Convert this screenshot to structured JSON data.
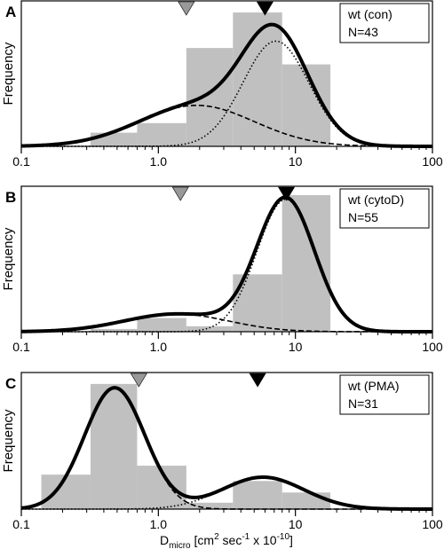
{
  "chart_data": {
    "type": "histogram",
    "x_scale": "log",
    "xlim": [
      0.1,
      100
    ],
    "x_ticks": [
      "0.1",
      "1.0",
      "10",
      "100"
    ],
    "xlabel": {
      "main": "D",
      "sub": "micro",
      "pre_sup": "[cm",
      "sup1": "2",
      "mid": " sec",
      "sup2": "-1",
      "post": " x 10",
      "sup3": "-10",
      "end": "]"
    },
    "ylabel": "Frequency",
    "grid": false,
    "legend_placement": "top-right",
    "colors": {
      "bars": "#c0c0c0",
      "curves": "#000000",
      "marker_gray": "#999999",
      "marker_black": "#000000"
    },
    "panels": [
      {
        "label": "A",
        "legend_lines": [
          "wt (con)",
          "N=43"
        ],
        "ymax": 1.0,
        "bins": [
          {
            "x0": 0.32,
            "x1": 0.7,
            "value": 0.1
          },
          {
            "x0": 0.7,
            "x1": 1.6,
            "value": 0.17
          },
          {
            "x0": 1.6,
            "x1": 3.5,
            "value": 0.72
          },
          {
            "x0": 3.5,
            "x1": 8.0,
            "value": 0.98
          },
          {
            "x0": 8.0,
            "x1": 18.0,
            "value": 0.6
          }
        ],
        "components": [
          {
            "style": "dashed",
            "amplitude": 0.3,
            "center": 1.9,
            "sigma_decades": 0.42
          },
          {
            "style": "dotted",
            "amplitude": 0.77,
            "center": 7.2,
            "sigma_decades": 0.24
          }
        ],
        "markers": [
          {
            "x": 1.6,
            "color": "gray"
          },
          {
            "x": 6.0,
            "color": "black"
          }
        ]
      },
      {
        "label": "B",
        "legend_lines": [
          "wt (cytoD)",
          "N=55"
        ],
        "ymax": 1.0,
        "bins": [
          {
            "x0": 0.32,
            "x1": 0.7,
            "value": 0.02
          },
          {
            "x0": 0.7,
            "x1": 1.6,
            "value": 0.1
          },
          {
            "x0": 1.6,
            "x1": 3.5,
            "value": 0.04
          },
          {
            "x0": 3.5,
            "x1": 8.0,
            "value": 0.42
          },
          {
            "x0": 8.0,
            "x1": 18.0,
            "value": 1.0
          }
        ],
        "components": [
          {
            "style": "dashed",
            "amplitude": 0.13,
            "center": 1.35,
            "sigma_decades": 0.38
          },
          {
            "style": "dotted",
            "amplitude": 0.97,
            "center": 8.5,
            "sigma_decades": 0.21
          }
        ],
        "markers": [
          {
            "x": 1.45,
            "color": "gray"
          },
          {
            "x": 8.6,
            "color": "black"
          }
        ]
      },
      {
        "label": "C",
        "legend_lines": [
          "wt (PMA)",
          "N=31"
        ],
        "ymax": 1.0,
        "bins": [
          {
            "x0": 0.14,
            "x1": 0.32,
            "value": 0.27
          },
          {
            "x0": 0.32,
            "x1": 0.7,
            "value": 0.98
          },
          {
            "x0": 0.7,
            "x1": 1.6,
            "value": 0.34
          },
          {
            "x0": 1.6,
            "x1": 3.5,
            "value": 0.05
          },
          {
            "x0": 3.5,
            "x1": 8.0,
            "value": 0.22
          },
          {
            "x0": 8.0,
            "x1": 18.0,
            "value": 0.13
          }
        ],
        "components": [
          {
            "style": "dashed",
            "amplitude": 0.95,
            "center": 0.48,
            "sigma_decades": 0.22
          },
          {
            "style": "dotted",
            "amplitude": 0.25,
            "center": 5.8,
            "sigma_decades": 0.3
          }
        ],
        "markers": [
          {
            "x": 0.72,
            "color": "gray"
          },
          {
            "x": 5.3,
            "color": "black"
          }
        ]
      }
    ]
  }
}
